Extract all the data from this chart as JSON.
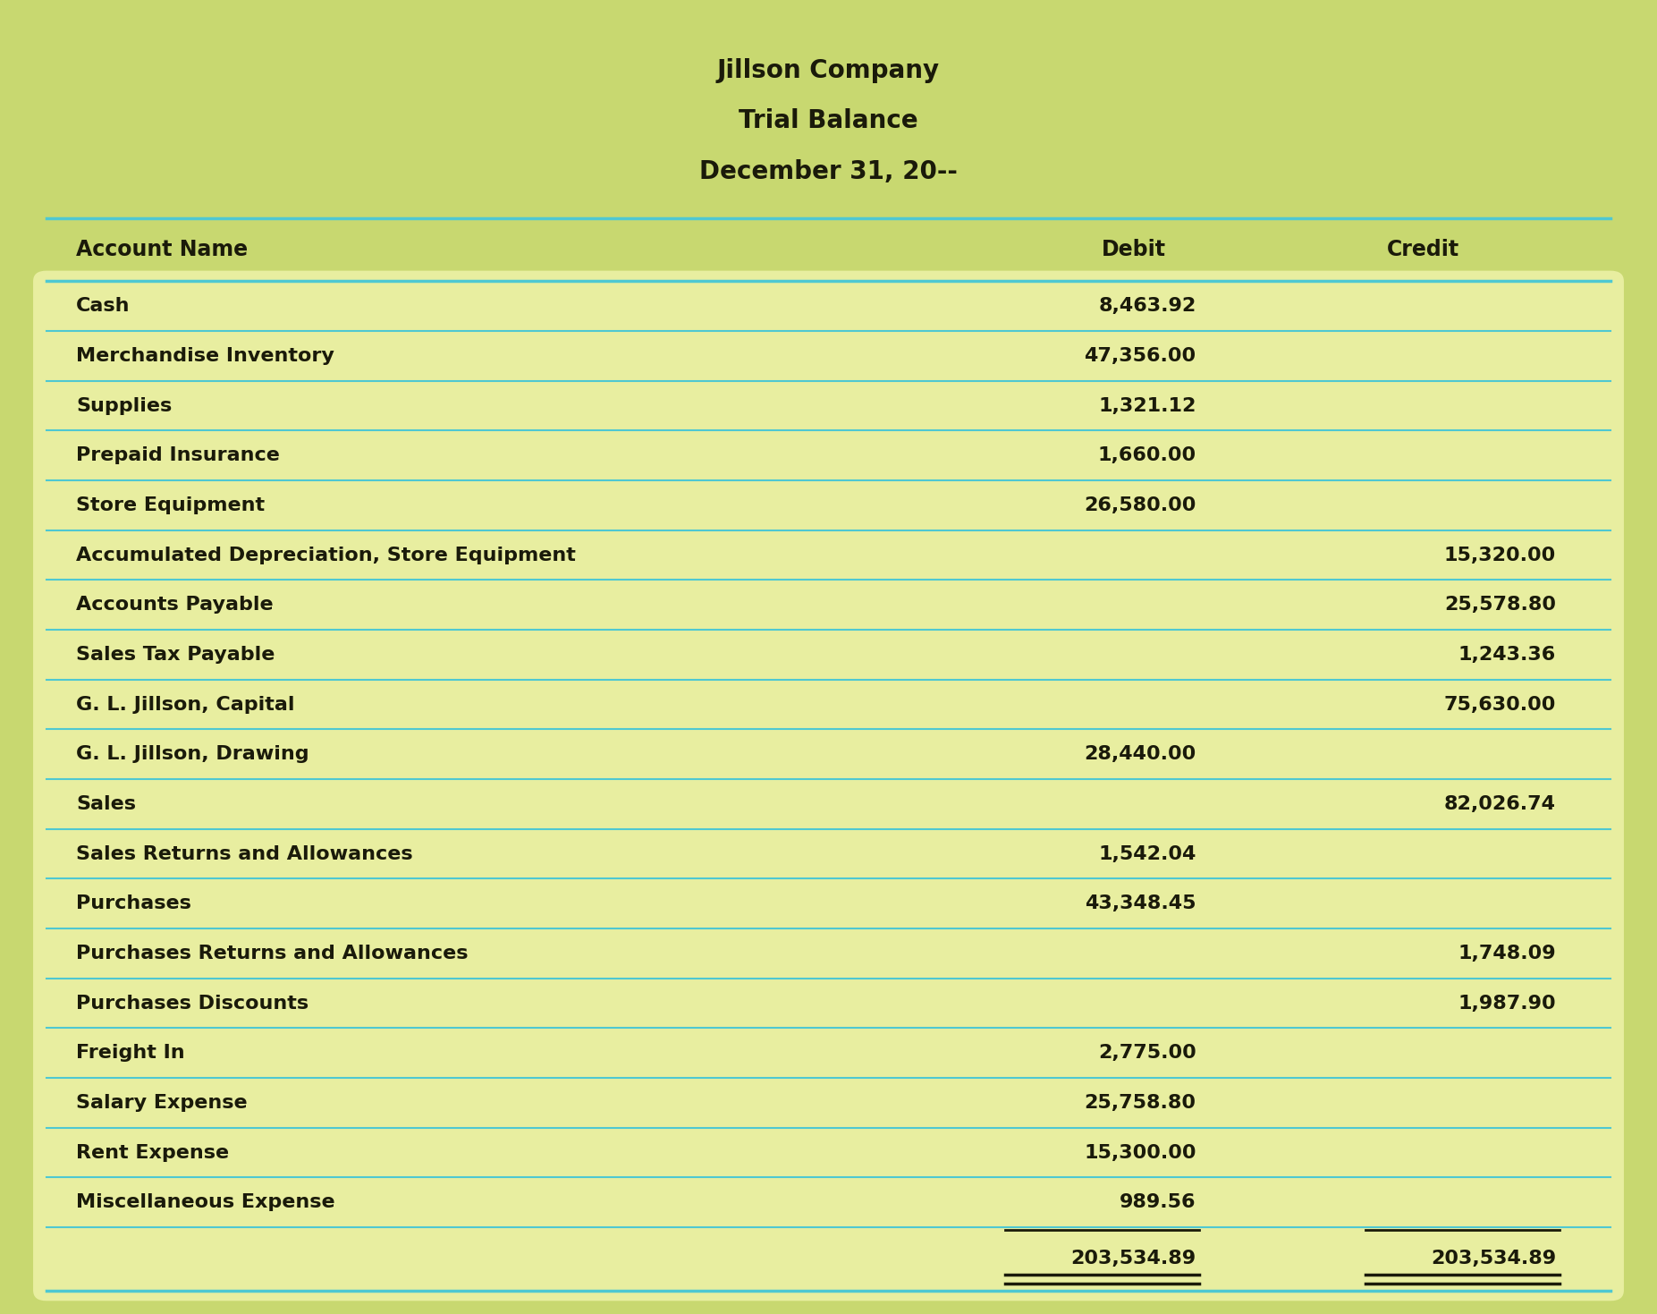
{
  "title_lines": [
    "Jillson Company",
    "Trial Balance",
    "December 31, 20--"
  ],
  "header": [
    "Account Name",
    "Debit",
    "Credit"
  ],
  "rows": [
    [
      "Cash",
      "8,463.92",
      ""
    ],
    [
      "Merchandise Inventory",
      "47,356.00",
      ""
    ],
    [
      "Supplies",
      "1,321.12",
      ""
    ],
    [
      "Prepaid Insurance",
      "1,660.00",
      ""
    ],
    [
      "Store Equipment",
      "26,580.00",
      ""
    ],
    [
      "Accumulated Depreciation, Store Equipment",
      "",
      "15,320.00"
    ],
    [
      "Accounts Payable",
      "",
      "25,578.80"
    ],
    [
      "Sales Tax Payable",
      "",
      "1,243.36"
    ],
    [
      "G. L. Jillson, Capital",
      "",
      "75,630.00"
    ],
    [
      "G. L. Jillson, Drawing",
      "28,440.00",
      ""
    ],
    [
      "Sales",
      "",
      "82,026.74"
    ],
    [
      "Sales Returns and Allowances",
      "1,542.04",
      ""
    ],
    [
      "Purchases",
      "43,348.45",
      ""
    ],
    [
      "Purchases Returns and Allowances",
      "",
      "1,748.09"
    ],
    [
      "Purchases Discounts",
      "",
      "1,987.90"
    ],
    [
      "Freight In",
      "2,775.00",
      ""
    ],
    [
      "Salary Expense",
      "25,758.80",
      ""
    ],
    [
      "Rent Expense",
      "15,300.00",
      ""
    ],
    [
      "Miscellaneous Expense",
      "989.56",
      ""
    ]
  ],
  "totals": [
    "",
    "203,534.89",
    "203,534.89"
  ],
  "bg_title_color": "#c8d870",
  "bg_header_color": "#c8d870",
  "bg_body_color": "#e8eea0",
  "outer_bg": "#c8d870",
  "line_color": "#4ec8d2",
  "text_color": "#1a1a0a",
  "total_underline_color": "#1a1a0a",
  "font_size_title": 20,
  "font_size_header": 17,
  "font_size_row": 16
}
